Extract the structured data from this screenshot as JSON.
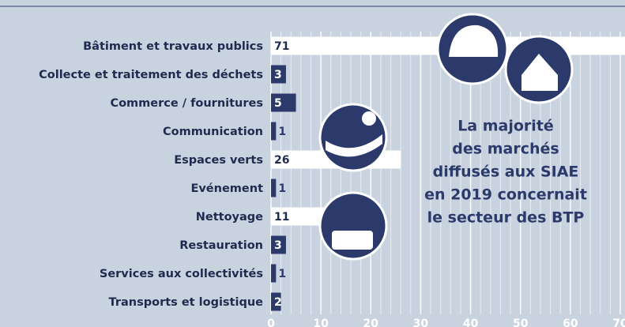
{
  "chart_data": {
    "type": "barh",
    "categories": [
      "Bâtiment et travaux publics",
      "Collecte et traitement des déchets",
      "Commerce / fournitures",
      "Communication",
      "Espaces verts",
      "Evénement",
      "Nettoyage",
      "Restauration",
      "Services aux collectivités",
      "Transports et logistique"
    ],
    "values": [
      71,
      3,
      5,
      1,
      26,
      1,
      11,
      3,
      1,
      2
    ],
    "colors": [
      "#ffffff",
      "#2b3a6b",
      "#2b3a6b",
      "#2b3a6b",
      "#ffffff",
      "#2b3a6b",
      "#ffffff",
      "#2b3a6b",
      "#2b3a6b",
      "#2b3a6b"
    ],
    "xlim": [
      0,
      70
    ],
    "xticks": [
      0,
      10,
      20,
      30,
      40,
      50,
      60,
      70
    ],
    "grid": true,
    "annotation": [
      "La majorité",
      "des marchés",
      "diffusés aux SIAE",
      "en 2019 concernait",
      "le secteur des BTP"
    ]
  }
}
